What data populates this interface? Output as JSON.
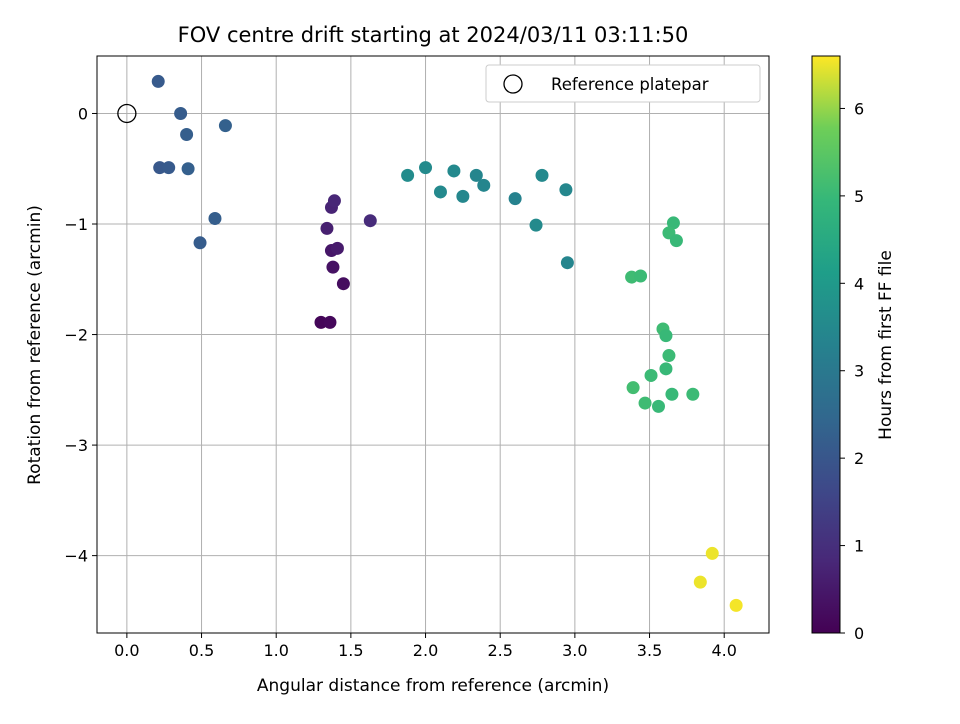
{
  "chart_data": {
    "type": "scatter",
    "title": "FOV centre drift starting at 2024/03/11 03:11:50",
    "xlabel": "Angular distance from reference (arcmin)",
    "ylabel": "Rotation from reference (arcmin)",
    "xlim": [
      -0.2,
      4.3
    ],
    "ylim": [
      -4.7,
      0.52
    ],
    "xticks": [
      0.0,
      0.5,
      1.0,
      1.5,
      2.0,
      2.5,
      3.0,
      3.5,
      4.0
    ],
    "xtick_labels": [
      "0.0",
      "0.5",
      "1.0",
      "1.5",
      "2.0",
      "2.5",
      "3.0",
      "3.5",
      "4.0"
    ],
    "yticks": [
      0,
      -1,
      -2,
      -3,
      -4
    ],
    "ytick_labels": [
      "0",
      "−1",
      "−2",
      "−3",
      "−4"
    ],
    "grid": true,
    "legend": {
      "placement": "top-right",
      "label": "Reference platepar"
    },
    "reference_point": {
      "x": 0.0,
      "y": 0.0
    },
    "colorbar": {
      "label": "Hours from first FF file",
      "colormap": "viridis",
      "range": [
        0,
        6.6
      ],
      "ticks": [
        0,
        1,
        2,
        3,
        4,
        5,
        6
      ],
      "tick_labels": [
        "0",
        "1",
        "2",
        "3",
        "4",
        "5",
        "6"
      ]
    },
    "points": [
      {
        "x": 1.3,
        "y": -1.89,
        "c": 0.1
      },
      {
        "x": 1.36,
        "y": -1.89,
        "c": 0.15
      },
      {
        "x": 1.45,
        "y": -1.54,
        "c": 0.25
      },
      {
        "x": 1.38,
        "y": -1.39,
        "c": 0.35
      },
      {
        "x": 1.37,
        "y": -1.24,
        "c": 0.45
      },
      {
        "x": 1.41,
        "y": -1.22,
        "c": 0.55
      },
      {
        "x": 1.34,
        "y": -1.04,
        "c": 0.65
      },
      {
        "x": 1.37,
        "y": -0.85,
        "c": 0.75
      },
      {
        "x": 1.39,
        "y": -0.79,
        "c": 0.8
      },
      {
        "x": 1.63,
        "y": -0.97,
        "c": 0.9
      },
      {
        "x": 0.21,
        "y": 0.29,
        "c": 2.1
      },
      {
        "x": 0.36,
        "y": 0.0,
        "c": 2.15
      },
      {
        "x": 0.4,
        "y": -0.19,
        "c": 2.2
      },
      {
        "x": 0.22,
        "y": -0.49,
        "c": 2.05
      },
      {
        "x": 0.28,
        "y": -0.49,
        "c": 2.1
      },
      {
        "x": 0.41,
        "y": -0.5,
        "c": 2.25
      },
      {
        "x": 0.66,
        "y": -0.11,
        "c": 2.3
      },
      {
        "x": 0.59,
        "y": -0.95,
        "c": 2.2
      },
      {
        "x": 0.49,
        "y": -1.17,
        "c": 2.15
      },
      {
        "x": 1.88,
        "y": -0.56,
        "c": 3.6
      },
      {
        "x": 2.0,
        "y": -0.49,
        "c": 3.55
      },
      {
        "x": 2.1,
        "y": -0.71,
        "c": 3.5
      },
      {
        "x": 2.19,
        "y": -0.52,
        "c": 3.5
      },
      {
        "x": 2.25,
        "y": -0.75,
        "c": 3.45
      },
      {
        "x": 2.34,
        "y": -0.56,
        "c": 3.4
      },
      {
        "x": 2.39,
        "y": -0.65,
        "c": 3.4
      },
      {
        "x": 2.6,
        "y": -0.77,
        "c": 3.3
      },
      {
        "x": 2.78,
        "y": -0.56,
        "c": 3.5
      },
      {
        "x": 2.74,
        "y": -1.01,
        "c": 3.55
      },
      {
        "x": 2.94,
        "y": -0.69,
        "c": 3.45
      },
      {
        "x": 2.95,
        "y": -1.35,
        "c": 3.4
      },
      {
        "x": 3.38,
        "y": -1.48,
        "c": 5.1
      },
      {
        "x": 3.44,
        "y": -1.47,
        "c": 5.05
      },
      {
        "x": 3.66,
        "y": -0.99,
        "c": 5.0
      },
      {
        "x": 3.63,
        "y": -1.08,
        "c": 5.05
      },
      {
        "x": 3.68,
        "y": -1.15,
        "c": 5.0
      },
      {
        "x": 3.59,
        "y": -1.95,
        "c": 5.1
      },
      {
        "x": 3.61,
        "y": -2.01,
        "c": 5.0
      },
      {
        "x": 3.63,
        "y": -2.19,
        "c": 5.05
      },
      {
        "x": 3.61,
        "y": -2.31,
        "c": 5.0
      },
      {
        "x": 3.51,
        "y": -2.37,
        "c": 5.05
      },
      {
        "x": 3.39,
        "y": -2.48,
        "c": 5.15
      },
      {
        "x": 3.65,
        "y": -2.54,
        "c": 5.0
      },
      {
        "x": 3.79,
        "y": -2.54,
        "c": 5.05
      },
      {
        "x": 3.47,
        "y": -2.62,
        "c": 5.1
      },
      {
        "x": 3.56,
        "y": -2.65,
        "c": 5.0
      },
      {
        "x": 3.92,
        "y": -3.98,
        "c": 6.5
      },
      {
        "x": 3.84,
        "y": -4.24,
        "c": 6.5
      },
      {
        "x": 4.08,
        "y": -4.45,
        "c": 6.55
      }
    ]
  }
}
